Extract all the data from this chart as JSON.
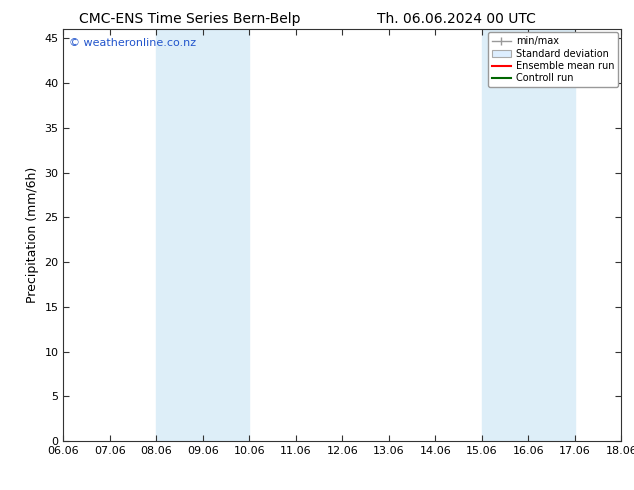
{
  "title_left": "CMC-ENS Time Series Bern-Belp",
  "title_right": "Th. 06.06.2024 00 UTC",
  "ylabel": "Precipitation (mm/6h)",
  "watermark": "© weatheronline.co.nz",
  "xlim": [
    0,
    12
  ],
  "ylim": [
    0,
    46
  ],
  "yticks": [
    0,
    5,
    10,
    15,
    20,
    25,
    30,
    35,
    40,
    45
  ],
  "xtick_labels": [
    "06.06",
    "07.06",
    "08.06",
    "09.06",
    "10.06",
    "11.06",
    "12.06",
    "13.06",
    "14.06",
    "15.06",
    "16.06",
    "17.06",
    "18.06"
  ],
  "xtick_positions": [
    0,
    1,
    2,
    3,
    4,
    5,
    6,
    7,
    8,
    9,
    10,
    11,
    12
  ],
  "shaded_regions": [
    {
      "xmin": 2,
      "xmax": 4,
      "color": "#ddeef8"
    },
    {
      "xmin": 9,
      "xmax": 11,
      "color": "#ddeef8"
    }
  ],
  "legend": {
    "min_max_label": "min/max",
    "std_dev_label": "Standard deviation",
    "ensemble_label": "Ensemble mean run",
    "control_label": "Controll run",
    "min_max_color": "#999999",
    "std_dev_facecolor": "#ddeeff",
    "std_dev_edgecolor": "#aaaaaa",
    "ensemble_color": "#ff0000",
    "control_color": "#006600"
  },
  "watermark_color": "#2255cc",
  "background_color": "#ffffff",
  "title_fontsize": 10,
  "axis_label_fontsize": 9,
  "tick_fontsize": 8,
  "watermark_fontsize": 8
}
